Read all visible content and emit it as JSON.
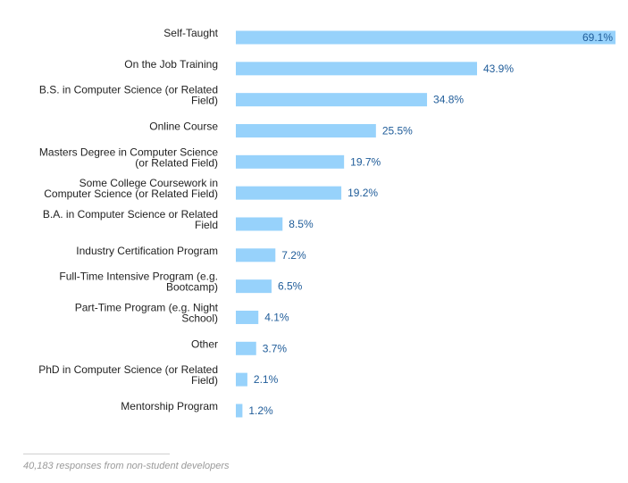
{
  "chart_data": {
    "type": "bar",
    "orientation": "horizontal",
    "categories": [
      [
        "Self-Taught"
      ],
      [
        "On the Job Training"
      ],
      [
        "B.S. in Computer Science (or Related",
        "Field)"
      ],
      [
        "Online Course"
      ],
      [
        "Masters Degree in Computer Science",
        "(or Related Field)"
      ],
      [
        "Some College Coursework in",
        "Computer Science (or Related Field)"
      ],
      [
        "B.A. in Computer Science or Related",
        "Field"
      ],
      [
        "Industry Certification Program"
      ],
      [
        "Full-Time Intensive Program (e.g.",
        "Bootcamp)"
      ],
      [
        "Part-Time Program (e.g. Night",
        "School)"
      ],
      [
        "Other"
      ],
      [
        "PhD in Computer Science (or Related",
        "Field)"
      ],
      [
        "Mentorship Program"
      ]
    ],
    "values": [
      69.1,
      43.9,
      34.8,
      25.5,
      19.7,
      19.2,
      8.5,
      7.2,
      6.5,
      4.1,
      3.7,
      2.1,
      1.2
    ],
    "value_labels": [
      "69.1%",
      "43.9%",
      "34.8%",
      "25.5%",
      "19.7%",
      "19.2%",
      "8.5%",
      "7.2%",
      "6.5%",
      "4.1%",
      "3.7%",
      "2.1%",
      "1.2%"
    ],
    "xlim": [
      0,
      69.1
    ],
    "grid": false,
    "colors": {
      "bar": "#97d2fb",
      "value_label": "#1f5c99",
      "category_label": "#222222"
    }
  },
  "footer": {
    "note": "40,183 responses from non-student developers"
  }
}
